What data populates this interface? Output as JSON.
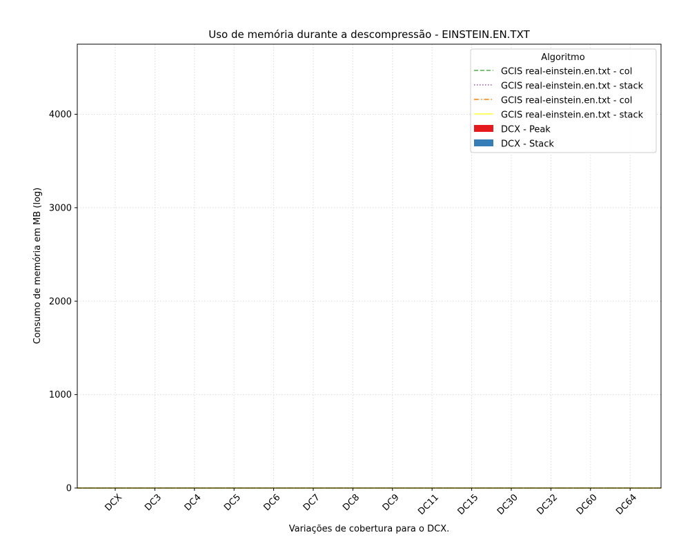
{
  "chart_data": {
    "type": "bar",
    "title": "Uso de memória durante a descompressão -  EINSTEIN.EN.TXT",
    "xlabel": "Variações de cobertura para o DCX.",
    "ylabel": "Consumo de memória em MB (log)",
    "categories": [
      "DCX",
      "DC3",
      "DC4",
      "DC5",
      "DC6",
      "DC7",
      "DC8",
      "DC9",
      "DC11",
      "DC15",
      "DC30",
      "DC32",
      "DC60",
      "DC64"
    ],
    "ylim": [
      0,
      4750
    ],
    "yticks": [
      0,
      1000,
      2000,
      3000,
      4000
    ],
    "grid": true,
    "legend": {
      "title": "Algoritmo",
      "placement": "top-right"
    },
    "series": [
      {
        "name": "GCIS real-einstein.en.txt - col",
        "kind": "line",
        "style": "dashed",
        "color": "#4daf4a",
        "values": [
          0,
          0,
          0,
          0,
          0,
          0,
          0,
          0,
          0,
          0,
          0,
          0,
          0,
          0
        ]
      },
      {
        "name": "GCIS real-einstein.en.txt - stack",
        "kind": "line",
        "style": "dotted",
        "color": "#984ea3",
        "values": [
          0,
          0,
          0,
          0,
          0,
          0,
          0,
          0,
          0,
          0,
          0,
          0,
          0,
          0
        ]
      },
      {
        "name": "GCIS real-einstein.en.txt - col",
        "kind": "line",
        "style": "dashdot",
        "color": "#ff7f00",
        "values": [
          0,
          0,
          0,
          0,
          0,
          0,
          0,
          0,
          0,
          0,
          0,
          0,
          0,
          0
        ]
      },
      {
        "name": "GCIS real-einstein.en.txt - stack",
        "kind": "line",
        "style": "solid",
        "color": "#ffff33",
        "values": [
          0,
          0,
          0,
          0,
          0,
          0,
          0,
          0,
          0,
          0,
          0,
          0,
          0,
          0
        ]
      },
      {
        "name": "DCX - Peak",
        "kind": "bar",
        "color": "#e41a1c",
        "values": [
          0,
          0,
          0,
          0,
          0,
          0,
          0,
          0,
          0,
          0,
          0,
          0,
          0,
          0
        ]
      },
      {
        "name": "DCX - Stack",
        "kind": "bar",
        "color": "#377eb8",
        "values": [
          0,
          0,
          0,
          0,
          0,
          0,
          0,
          0,
          0,
          0,
          0,
          0,
          0,
          0
        ]
      }
    ]
  }
}
